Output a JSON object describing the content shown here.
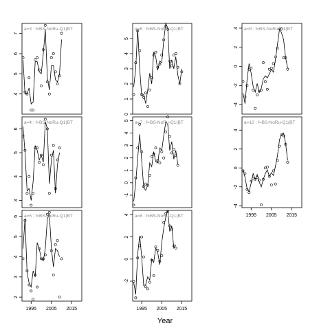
{
  "chart_data": {
    "type": "line",
    "xlabel": "Year",
    "x": [
      1991,
      1992,
      1993,
      1994,
      1995,
      1996,
      1997,
      1998,
      1999,
      2000,
      2001,
      2002,
      2003,
      2004,
      2005,
      2006,
      2007,
      2008,
      2009,
      2010,
      2011,
      2012,
      2013,
      2014,
      2015,
      2016,
      2017,
      2018,
      2019
    ],
    "xticks": [
      1995,
      2005,
      2015
    ],
    "panels": [
      {
        "label": "a=3 : f=BS-NoRu-Q1(BT",
        "ylim": [
          3,
          7.5
        ],
        "yticks": [
          4,
          5,
          6,
          7
        ],
        "observed": [
          5.8,
          4.1,
          4.0,
          4.8,
          3.2,
          3.2,
          5.7,
          5.8,
          5.2,
          4.4,
          6.2,
          7.4,
          4.6,
          4.0,
          5.8,
          6.0,
          5.1,
          4.5,
          4.9,
          7.0,
          null,
          null,
          null,
          null,
          null,
          null,
          null,
          null,
          null
        ],
        "fitted": [
          5.7,
          4.0,
          4.0,
          4.3,
          3.5,
          3.6,
          5.6,
          5.6,
          5.1,
          5.0,
          6.0,
          7.2,
          4.8,
          4.2,
          5.4,
          5.4,
          4.7,
          4.6,
          5.0,
          6.7,
          null,
          null,
          null,
          null,
          null,
          null,
          null,
          null,
          null
        ]
      },
      {
        "label": "a=4 : f=BS-NoRu-Q1(BT",
        "ylim": [
          2.7,
          6.5
        ],
        "yticks": [
          3,
          4,
          5,
          6
        ],
        "observed": [
          5.7,
          5.1,
          3.3,
          4.0,
          2.8,
          3.3,
          5.2,
          5.2,
          4.6,
          4.9,
          4.5,
          6.4,
          6.0,
          3.3,
          4.9,
          5.3,
          3.5,
          4.7,
          5.2,
          null,
          null,
          null,
          null,
          null,
          null,
          null,
          null,
          null,
          null
        ],
        "fitted": [
          6.1,
          5.0,
          3.4,
          3.5,
          3.0,
          3.8,
          5.3,
          5.1,
          4.7,
          4.9,
          4.6,
          6.3,
          6.0,
          3.7,
          4.7,
          5.1,
          3.3,
          4.5,
          5.0,
          null,
          null,
          null,
          null,
          null,
          null,
          null,
          null,
          null,
          null
        ]
      },
      {
        "label": "a=5 : f=BS-NoRu-Q1(BT",
        "ylim": [
          1.8,
          6.3
        ],
        "yticks": [
          2,
          3,
          4,
          5,
          6
        ],
        "observed": [
          3.9,
          5.8,
          3.3,
          2.6,
          2.3,
          1.9,
          3.1,
          2.5,
          4.4,
          3.9,
          3.9,
          4.1,
          6.1,
          6.2,
          4.3,
          3.1,
          4.6,
          4.8,
          2.0,
          3.9,
          null,
          null,
          null,
          null,
          null,
          null,
          null,
          null,
          null
        ],
        "fitted": [
          4.4,
          5.9,
          3.2,
          2.7,
          2.5,
          3.3,
          3.0,
          4.7,
          4.4,
          3.9,
          3.8,
          4.4,
          5.9,
          6.1,
          4.4,
          3.5,
          4.4,
          4.3,
          4.0,
          null,
          null,
          null,
          null,
          null,
          null,
          null,
          null,
          null,
          null
        ]
      },
      {
        "label": "a=6 : f=BS-NoRu-Q1(BT",
        "ylim": [
          0,
          6
        ],
        "yticks": [
          0,
          1,
          2,
          3,
          4,
          5
        ],
        "observed": [
          1.3,
          3.4,
          5.5,
          4.2,
          1.3,
          1.1,
          1.4,
          0.5,
          1.6,
          2.4,
          3.9,
          4.1,
          3.1,
          3.3,
          3.9,
          4.9,
          5.8,
          5.6,
          3.5,
          3.2,
          3.9,
          4.0,
          3.1,
          2.0,
          2.8,
          null,
          null,
          null,
          null
        ],
        "fitted": [
          1.8,
          3.0,
          5.6,
          3.0,
          1.2,
          1.3,
          0.7,
          1.6,
          2.7,
          2.0,
          4.1,
          3.8,
          2.9,
          3.5,
          3.4,
          4.9,
          6.0,
          5.7,
          3.0,
          3.6,
          3.0,
          3.8,
          2.6,
          2.0,
          3.0,
          null,
          null,
          null,
          null
        ]
      },
      {
        "label": "a=7 : f=BS-NoRu-Q1(BT",
        "ylim": [
          -2,
          5.3
        ],
        "yticks": [
          -1,
          0,
          1,
          2,
          3,
          4,
          5
        ],
        "observed": [
          -1.8,
          0.4,
          2.8,
          4.7,
          2.5,
          -0.3,
          -0.1,
          -0.2,
          0.6,
          2.1,
          2.3,
          2.8,
          1.8,
          1.6,
          2.5,
          2.0,
          4.1,
          5.3,
          3.7,
          2.4,
          2.7,
          2.2,
          1.4,
          null,
          null,
          null,
          null,
          null,
          null
        ],
        "fitted": [
          -1.5,
          0.0,
          2.0,
          3.9,
          1.8,
          -0.4,
          -0.6,
          -0.2,
          1.6,
          1.3,
          2.5,
          1.7,
          1.6,
          2.8,
          2.6,
          3.8,
          4.9,
          4.7,
          2.6,
          3.3,
          1.9,
          2.6,
          1.5,
          null,
          null,
          null,
          null,
          null,
          null
        ]
      },
      {
        "label": "a=8 : f=BS-NoRu-Q1(BT",
        "ylim": [
          -3.8,
          4.4
        ],
        "yticks": [
          -2,
          0,
          2,
          4
        ],
        "observed": [
          -2.0,
          -3.5,
          0.1,
          1.2,
          2.0,
          0.2,
          -2.5,
          -2.7,
          -2.1,
          -0.1,
          -1.5,
          1.1,
          0.8,
          -0.2,
          0.3,
          3.3,
          4.1,
          4.3,
          3.0,
          2.7,
          1.2,
          1.0,
          null,
          null,
          null,
          null,
          null,
          null,
          null
        ],
        "fitted": [
          -2.1,
          -3.2,
          0.5,
          2.1,
          0.2,
          -2.4,
          -2.3,
          -1.6,
          -1.9,
          0.0,
          -0.3,
          1.0,
          0.6,
          -0.5,
          1.5,
          2.8,
          3.8,
          4.4,
          2.5,
          3.0,
          1.0,
          1.3,
          null,
          null,
          null,
          null,
          null,
          null,
          null
        ]
      },
      {
        "label": "a=9 : f=BS-NoRu-Q1(BT",
        "ylim": [
          -5,
          4.5
        ],
        "yticks": [
          -4,
          -2,
          0,
          2,
          4
        ],
        "observed": [
          -1.6,
          -3.2,
          -2.0,
          -0.3,
          -0.2,
          -2.5,
          -4.4,
          -3.0,
          -2.6,
          -2.5,
          0.4,
          -1.6,
          -2.4,
          -0.3,
          -0.2,
          0.3,
          1.0,
          1.9,
          3.9,
          3.9,
          0.9,
          0.9,
          -0.3,
          null,
          null,
          null,
          null,
          null,
          null
        ],
        "fitted": [
          -2.8,
          -3.9,
          -1.4,
          0.3,
          -0.7,
          -2.1,
          -2.7,
          -1.8,
          -2.7,
          -2.3,
          -1.3,
          -1.0,
          -1.2,
          -0.8,
          -0.3,
          -0.6,
          0.7,
          2.3,
          3.9,
          3.5,
          2.8,
          0.9,
          -0.2,
          null,
          null,
          null,
          null,
          null,
          null
        ]
      },
      {
        "label": "a=10 : f=BS-NoRu-Q1(BT",
        "ylim": [
          -4.2,
          5.4
        ],
        "yticks": [
          -4,
          -2,
          0,
          2,
          4
        ],
        "observed": [
          -0.3,
          -0.6,
          -2.3,
          -2.6,
          -1.4,
          -1.1,
          -1.2,
          -1.0,
          -1.3,
          -3.9,
          -1.2,
          0.0,
          0.1,
          -0.9,
          -1.8,
          -0.3,
          -1.7,
          0.8,
          2.3,
          3.5,
          3.4,
          2.5,
          0.6,
          null,
          null,
          null,
          null,
          null,
          null
        ],
        "fitted": [
          -0.2,
          -1.0,
          -2.2,
          -2.5,
          -1.6,
          -0.6,
          -1.2,
          -0.7,
          -1.5,
          -2.0,
          -1.2,
          -0.6,
          -0.2,
          -0.9,
          -0.5,
          -0.8,
          0.2,
          1.3,
          3.0,
          3.5,
          3.7,
          2.6,
          0.8,
          null,
          null,
          null,
          null,
          null,
          null
        ]
      }
    ]
  }
}
